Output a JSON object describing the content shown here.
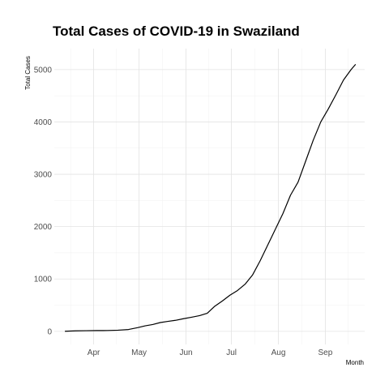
{
  "chart_data": {
    "type": "line",
    "title": "Total Cases of COVID-19 in Swaziland",
    "xlabel": "Month",
    "ylabel": "Total Cases",
    "x_ticks": [
      {
        "label": "Apr",
        "date": "2020-04-01"
      },
      {
        "label": "May",
        "date": "2020-05-01"
      },
      {
        "label": "Jun",
        "date": "2020-06-01"
      },
      {
        "label": "Jul",
        "date": "2020-07-01"
      },
      {
        "label": "Aug",
        "date": "2020-08-01"
      },
      {
        "label": "Sep",
        "date": "2020-09-01"
      }
    ],
    "y_ticks": [
      0,
      1000,
      2000,
      3000,
      4000,
      5000
    ],
    "xlim": [
      "2020-03-06",
      "2020-09-27"
    ],
    "ylim": [
      -250,
      5400
    ],
    "grid": true,
    "series": [
      {
        "x": [
          "2020-03-13",
          "2020-03-20",
          "2020-03-27",
          "2020-04-03",
          "2020-04-10",
          "2020-04-17",
          "2020-04-24",
          "2020-04-30",
          "2020-05-05",
          "2020-05-10",
          "2020-05-15",
          "2020-05-20",
          "2020-05-25",
          "2020-05-30",
          "2020-06-05",
          "2020-06-10",
          "2020-06-15",
          "2020-06-20",
          "2020-06-25",
          "2020-06-30",
          "2020-07-05",
          "2020-07-10",
          "2020-07-15",
          "2020-07-20",
          "2020-07-25",
          "2020-07-30",
          "2020-08-04",
          "2020-08-09",
          "2020-08-14",
          "2020-08-19",
          "2020-08-24",
          "2020-08-29",
          "2020-09-03",
          "2020-09-08",
          "2020-09-13",
          "2020-09-18",
          "2020-09-21"
        ],
        "y": [
          1,
          9,
          12,
          15,
          16,
          22,
          35,
          70,
          105,
          130,
          168,
          190,
          210,
          240,
          272,
          300,
          345,
          480,
          580,
          690,
          780,
          900,
          1080,
          1350,
          1650,
          1950,
          2250,
          2600,
          2850,
          3250,
          3650,
          4000,
          4250,
          4520,
          4800,
          5000,
          5100
        ]
      }
    ]
  }
}
